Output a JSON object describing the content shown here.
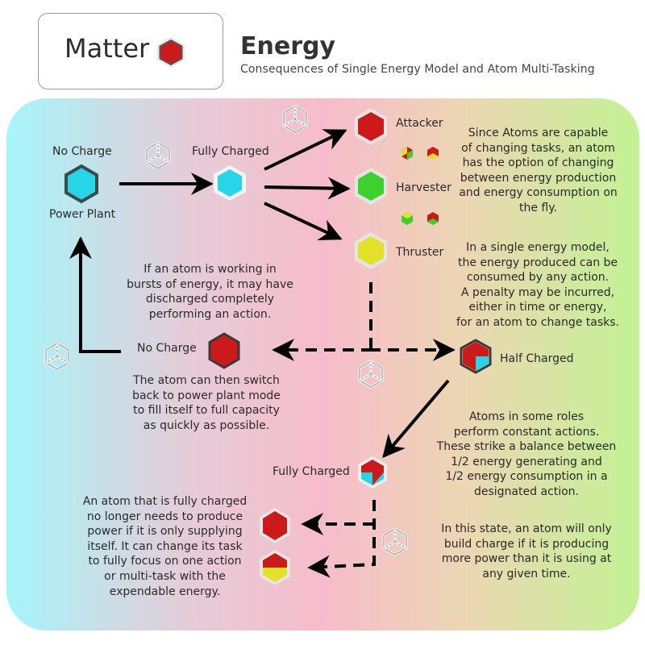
{
  "header": {
    "badge_label": "Matter",
    "title": "Energy",
    "subtitle": "Consequences of Single Energy Model and Atom Multi-Tasking"
  },
  "nodes": {
    "no_charge_top": "No Charge",
    "power_plant": "Power Plant",
    "fully_charged_top": "Fully Charged",
    "attacker": "Attacker",
    "harvester": "Harvester",
    "thruster": "Thruster",
    "no_charge_mid": "No Charge",
    "half_charged": "Half Charged",
    "fully_charged_bottom": "Fully Charged"
  },
  "notes": {
    "changing_tasks": [
      "Since Atoms are capable",
      "of changing tasks, an atom",
      "has the option of changing",
      "between energy production",
      "and energy consumption on",
      "the fly."
    ],
    "single_energy": [
      "In a single energy model,",
      "the energy produced can be",
      "consumed by any action.",
      "A penalty may be incurred,",
      "either in time or energy,",
      "for an atom to change tasks."
    ],
    "bursts": [
      "If an atom is working in",
      "bursts of energy, it may have",
      "discharged completely",
      "performing an action."
    ],
    "switch_back": [
      "The atom can then switch",
      "back to power plant mode",
      "to fill itself to full capacity",
      "as quickly as possible."
    ],
    "constant_actions": [
      "Atoms in some roles",
      "perform constant actions.",
      "These strike a balance between",
      "1/2 energy generating and",
      "1/2 energy consumption in a",
      "designated action."
    ],
    "build_charge": [
      "In this state, an atom will only",
      "build charge if it is producing",
      "more power than it is using at",
      "any given time."
    ],
    "fully_charged_note": [
      "An atom that is fully charged",
      "no longer needs to produce",
      "power if it is only supplying",
      "itself.  It can change its task",
      "to fully focus on one action",
      "or multi-task with the",
      "expendable energy."
    ]
  },
  "colors": {
    "red": "#cc1a1a",
    "green": "#3dd12e",
    "yellow": "#e3e02a",
    "cyan": "#27d6e6",
    "dark_outline": "#333333"
  }
}
